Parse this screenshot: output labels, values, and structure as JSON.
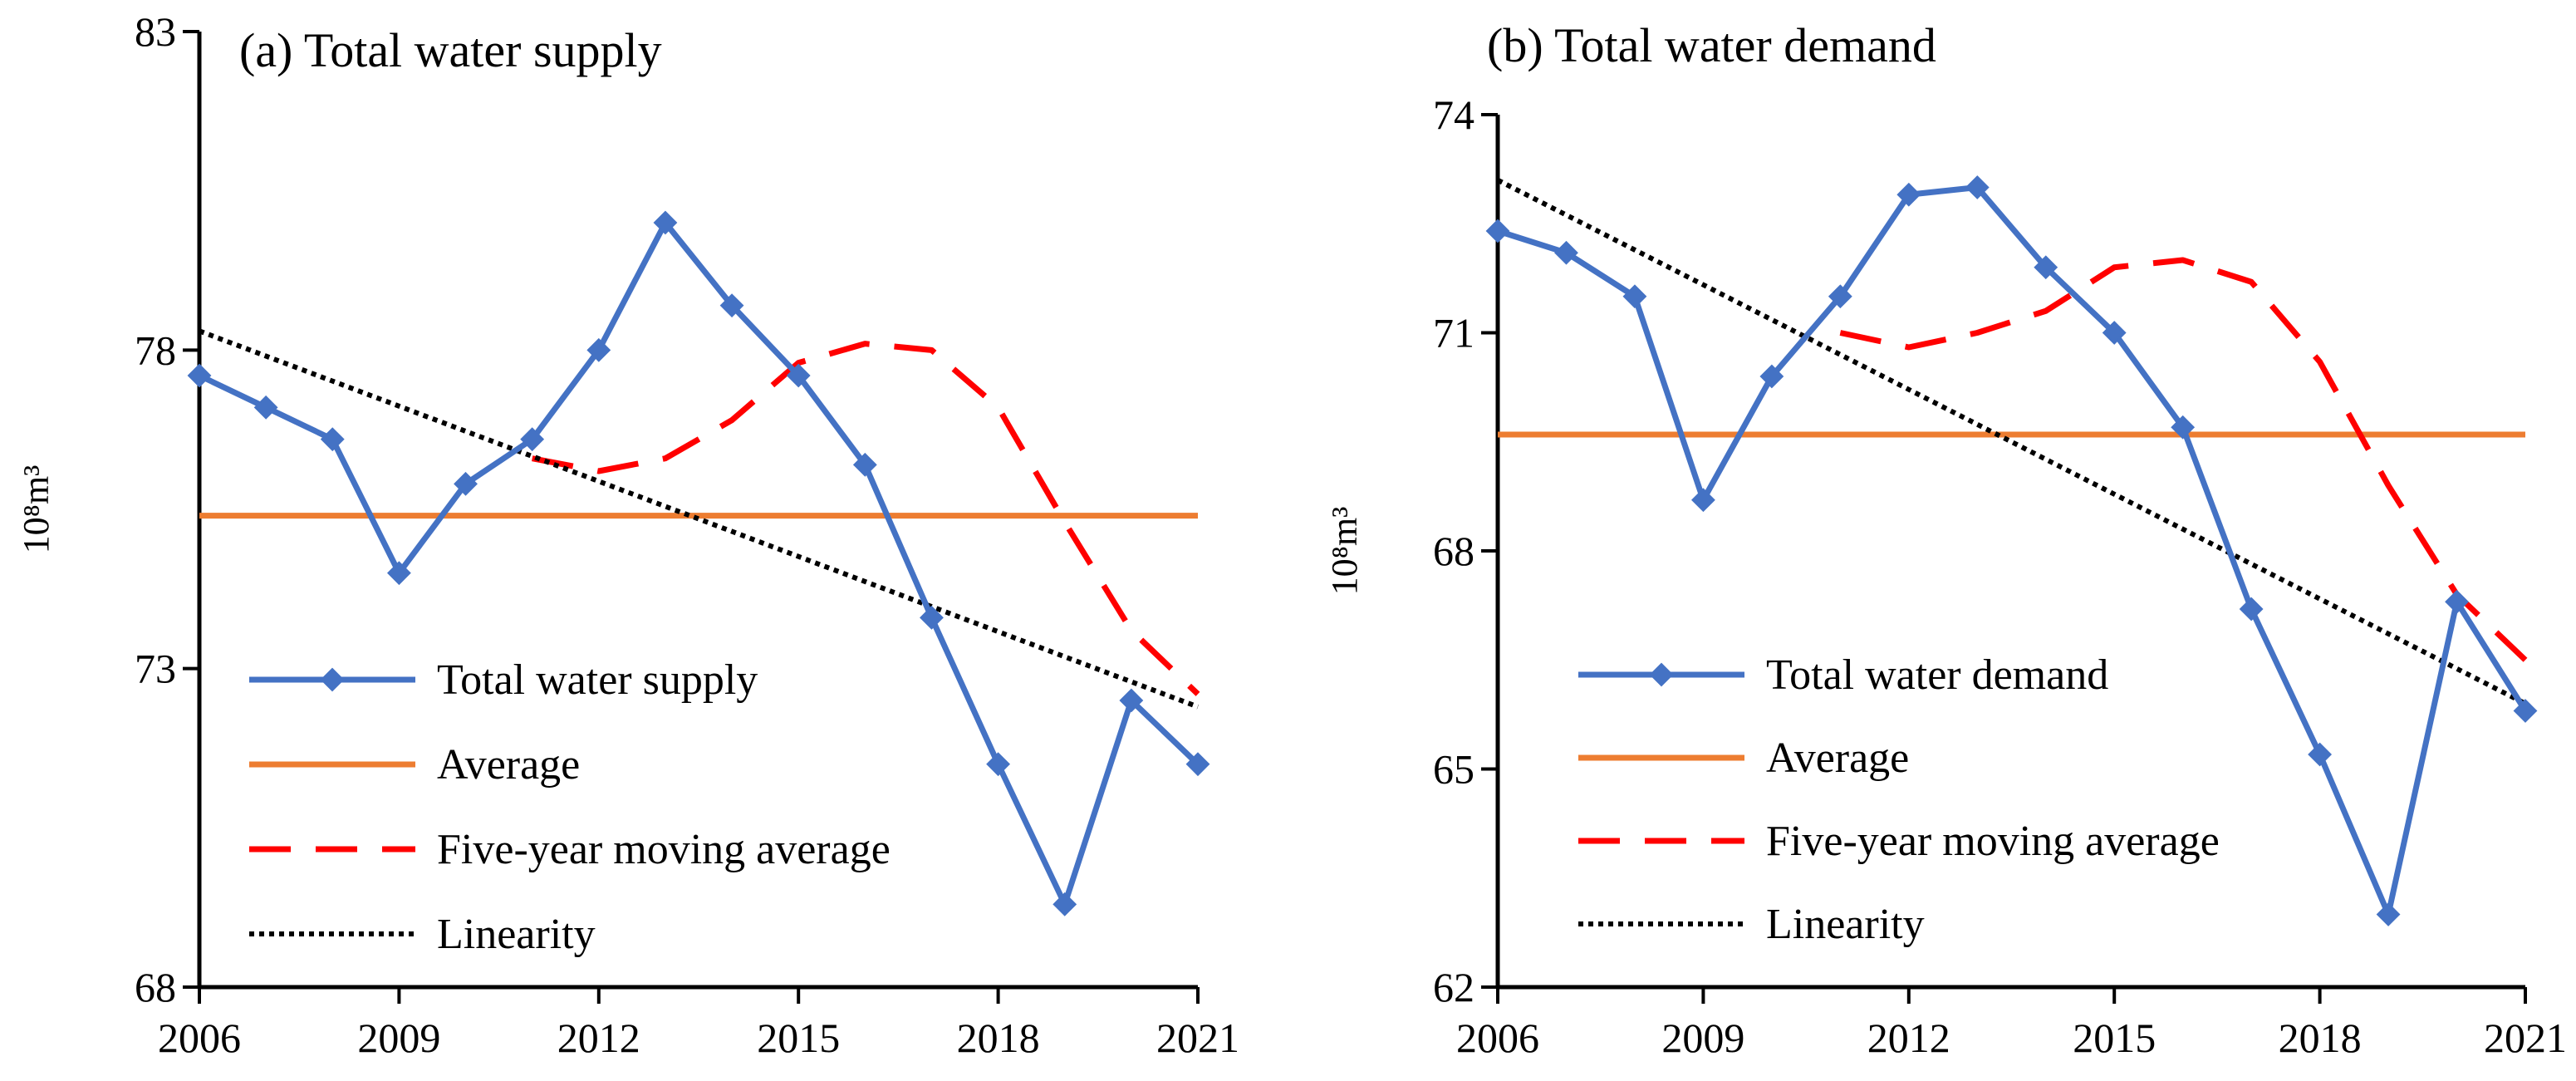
{
  "chart_data": [
    {
      "type": "line",
      "title": "(a) Total water supply",
      "ylabel": "10⁸m³",
      "xlabel": "",
      "ylim": [
        68,
        83
      ],
      "yticks": [
        68,
        73,
        78,
        83
      ],
      "xlim": [
        2006,
        2021
      ],
      "xticks": [
        2006,
        2009,
        2012,
        2015,
        2018,
        2021
      ],
      "x": [
        2006,
        2007,
        2008,
        2009,
        2010,
        2011,
        2012,
        2013,
        2014,
        2015,
        2016,
        2017,
        2018,
        2019,
        2020,
        2021
      ],
      "series": [
        {
          "name": "Total water supply",
          "color": "#4472C4",
          "style": "solid-diamond",
          "x": [
            2006,
            2007,
            2008,
            2009,
            2010,
            2011,
            2012,
            2013,
            2014,
            2015,
            2016,
            2017,
            2018,
            2019,
            2020,
            2021
          ],
          "values": [
            77.6,
            77.1,
            76.6,
            74.5,
            75.9,
            76.6,
            78.0,
            80.0,
            78.7,
            77.6,
            76.2,
            73.8,
            71.5,
            69.3,
            72.5,
            71.5
          ]
        },
        {
          "name": "Average",
          "color": "#ED7D31",
          "style": "solid",
          "x": [
            2006,
            2021
          ],
          "values": [
            75.4,
            75.4
          ]
        },
        {
          "name": "Five-year moving average",
          "color": "#FF0000",
          "style": "dashed",
          "x": [
            2011,
            2012,
            2013,
            2014,
            2015,
            2016,
            2017,
            2018,
            2019,
            2020,
            2021
          ],
          "values": [
            76.3,
            76.1,
            76.3,
            76.9,
            77.8,
            78.1,
            78.0,
            77.1,
            75.3,
            73.6,
            72.6
          ]
        },
        {
          "name": "Linearity",
          "color": "#000000",
          "style": "dotted",
          "x": [
            2006,
            2021
          ],
          "values": [
            78.3,
            72.4
          ]
        }
      ]
    },
    {
      "type": "line",
      "title": "(b) Total water demand",
      "ylabel": "10⁸m³",
      "xlabel": "",
      "ylim": [
        62,
        74
      ],
      "yticks": [
        62,
        65,
        68,
        71,
        74
      ],
      "xlim": [
        2006,
        2021
      ],
      "xticks": [
        2006,
        2009,
        2012,
        2015,
        2018,
        2021
      ],
      "x": [
        2006,
        2007,
        2008,
        2009,
        2010,
        2011,
        2012,
        2013,
        2014,
        2015,
        2016,
        2017,
        2018,
        2019,
        2020,
        2021
      ],
      "series": [
        {
          "name": "Total water demand",
          "color": "#4472C4",
          "style": "solid-diamond",
          "x": [
            2006,
            2007,
            2008,
            2009,
            2010,
            2011,
            2012,
            2013,
            2014,
            2015,
            2016,
            2017,
            2018,
            2019,
            2020,
            2021
          ],
          "values": [
            72.4,
            72.1,
            71.5,
            68.7,
            70.4,
            71.5,
            72.9,
            73.0,
            71.9,
            71.0,
            69.7,
            67.2,
            65.2,
            63.0,
            67.3,
            65.8
          ]
        },
        {
          "name": "Average",
          "color": "#ED7D31",
          "style": "solid",
          "x": [
            2006,
            2021
          ],
          "values": [
            69.6,
            69.6
          ]
        },
        {
          "name": "Five-year moving average",
          "color": "#FF0000",
          "style": "dashed",
          "x": [
            2011,
            2012,
            2013,
            2014,
            2015,
            2016,
            2017,
            2018,
            2019,
            2020,
            2021
          ],
          "values": [
            71.0,
            70.8,
            71.0,
            71.3,
            71.9,
            72.0,
            71.7,
            70.6,
            68.9,
            67.4,
            66.5
          ]
        },
        {
          "name": "Linearity",
          "color": "#000000",
          "style": "dotted",
          "x": [
            2006,
            2021
          ],
          "values": [
            73.1,
            65.9
          ]
        }
      ]
    }
  ]
}
